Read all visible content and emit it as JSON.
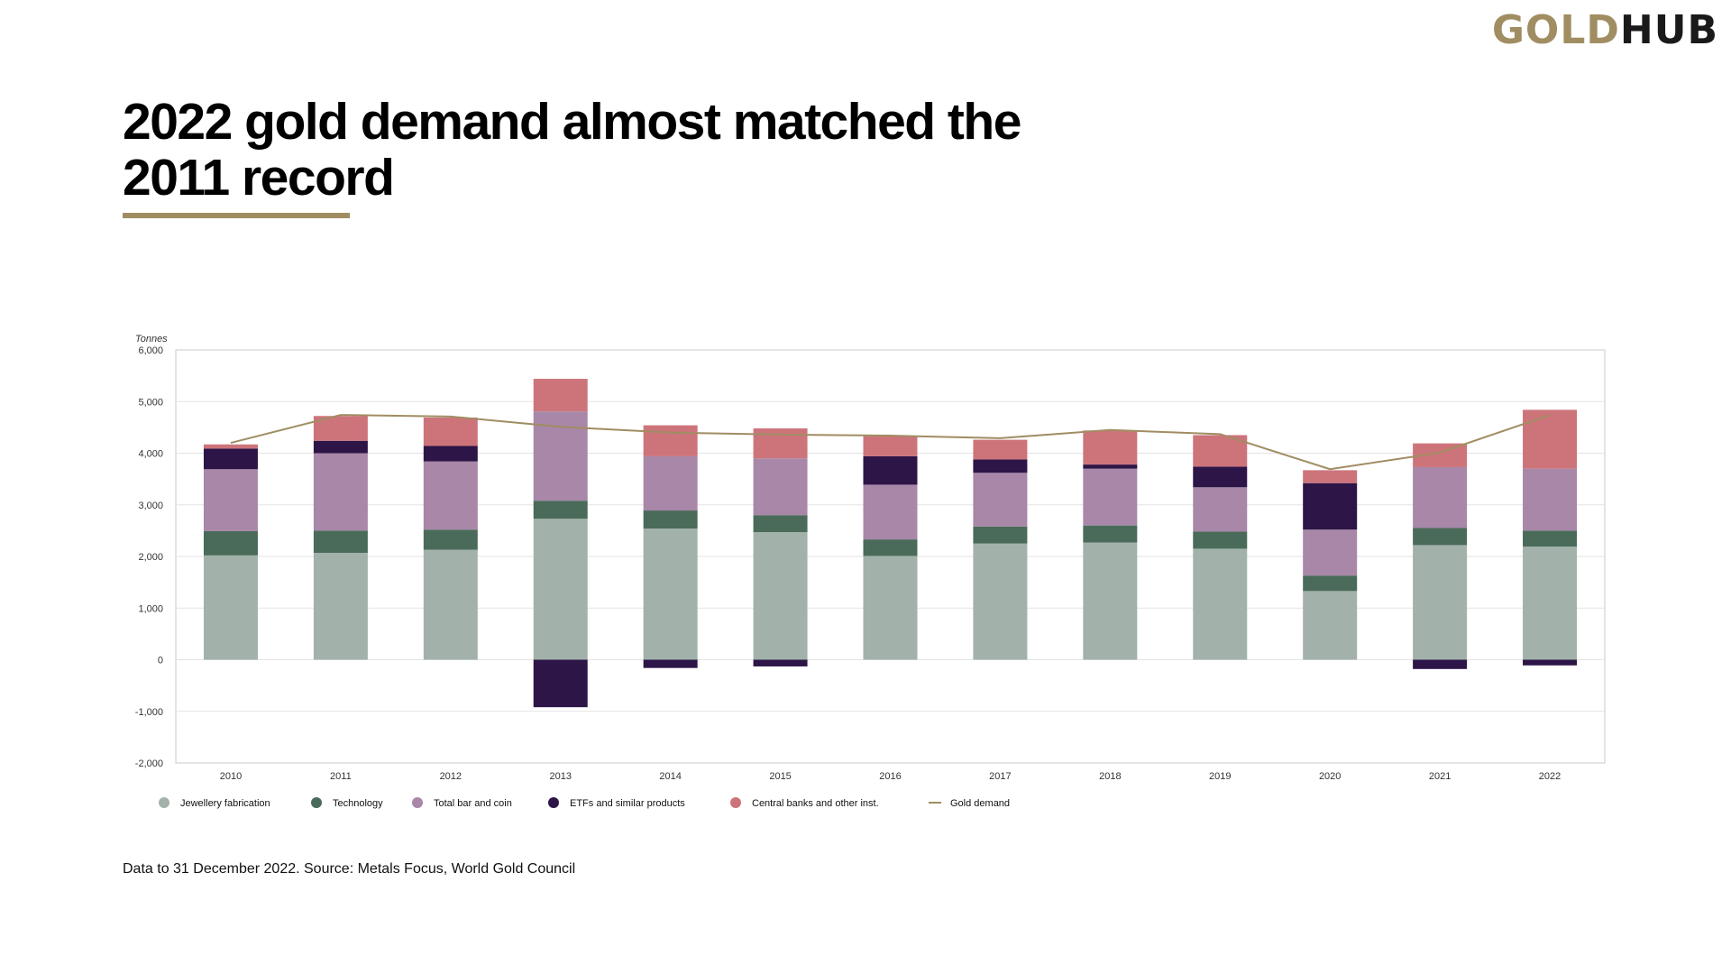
{
  "logo": {
    "part1": "GOLD",
    "part2": "HUB"
  },
  "title_lines": [
    "2022 gold demand almost matched the",
    "2011 record"
  ],
  "footnote": "Data to 31 December 2022. Source: Metals Focus, World Gold Council",
  "colors": {
    "accent": "#a08d62",
    "jewellery": "#a2b2aa",
    "technology": "#4a6b5a",
    "bar_coin": "#a887a8",
    "etfs": "#2e1547",
    "central_banks": "#cd747b",
    "gold_demand": "#a08d62"
  },
  "chart_data": {
    "type": "bar",
    "stacked": true,
    "ylabel": "Tonnes",
    "ylim": [
      -2000,
      6000
    ],
    "yticks": [
      -2000,
      -1000,
      0,
      1000,
      2000,
      3000,
      4000,
      5000,
      6000
    ],
    "ytick_labels": [
      "-2,000",
      "-1,000",
      "0",
      "1,000",
      "2,000",
      "3,000",
      "4,000",
      "5,000",
      "6,000"
    ],
    "grid": true,
    "legend_position": "bottom",
    "categories": [
      "2010",
      "2011",
      "2012",
      "2013",
      "2014",
      "2015",
      "2016",
      "2017",
      "2018",
      "2019",
      "2020",
      "2021",
      "2022"
    ],
    "series": [
      {
        "name": "Jewellery fabrication",
        "type": "bar",
        "color": "#a2b2aa",
        "values": [
          2020,
          2070,
          2130,
          2730,
          2540,
          2470,
          2010,
          2250,
          2270,
          2150,
          1330,
          2220,
          2190
        ]
      },
      {
        "name": "Technology",
        "type": "bar",
        "color": "#4a6b5a",
        "values": [
          470,
          430,
          390,
          350,
          350,
          330,
          320,
          330,
          330,
          330,
          300,
          330,
          310
        ]
      },
      {
        "name": "Total bar and coin",
        "type": "bar",
        "color": "#a887a8",
        "values": [
          1200,
          1500,
          1320,
          1730,
          1050,
          1100,
          1060,
          1040,
          1100,
          860,
          890,
          1180,
          1200
        ]
      },
      {
        "name": "ETFs and similar products",
        "type": "bar",
        "color": "#2e1547",
        "values": [
          400,
          240,
          300,
          -920,
          -160,
          -130,
          550,
          260,
          80,
          400,
          900,
          -180,
          -110
        ]
      },
      {
        "name": "Central banks and other inst.",
        "type": "bar",
        "color": "#cd747b",
        "values": [
          80,
          480,
          550,
          630,
          600,
          580,
          390,
          380,
          660,
          610,
          250,
          460,
          1140
        ]
      },
      {
        "name": "Gold demand",
        "type": "line",
        "color": "#a08d62",
        "values": [
          4200,
          4740,
          4710,
          4510,
          4400,
          4360,
          4340,
          4290,
          4450,
          4370,
          3690,
          4010,
          4740
        ]
      }
    ]
  }
}
